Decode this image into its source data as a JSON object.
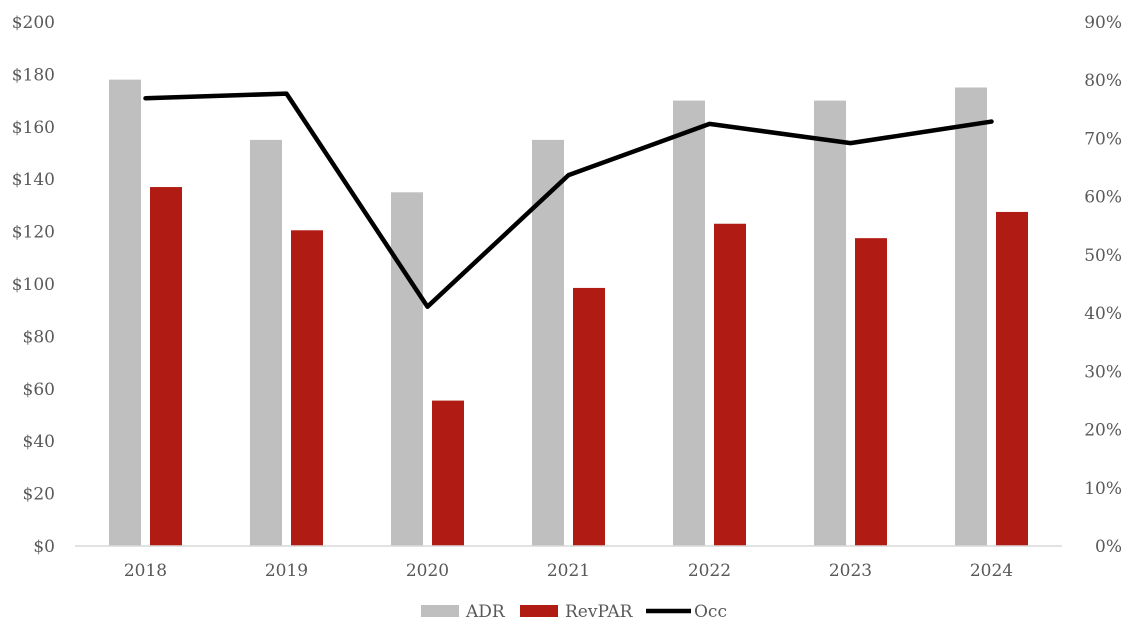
{
  "chart_data": {
    "type": "bar",
    "categories": [
      "2018",
      "2019",
      "2020",
      "2021",
      "2022",
      "2023",
      "2024"
    ],
    "series": [
      {
        "name": "ADR",
        "kind": "bar",
        "axis": "left",
        "color": "#bfbfbf",
        "values": [
          178,
          155,
          135,
          155,
          170,
          170,
          175
        ]
      },
      {
        "name": "RevPAR",
        "kind": "bar",
        "axis": "left",
        "color": "#b01c13",
        "values": [
          137,
          120.5,
          55.5,
          98.5,
          123,
          117.5,
          127.5
        ]
      },
      {
        "name": "Occ",
        "kind": "line",
        "axis": "right",
        "color": "#000000",
        "values": [
          0.769,
          0.777,
          0.411,
          0.637,
          0.725,
          0.692,
          0.729
        ]
      }
    ],
    "y_left": {
      "min": 0,
      "max": 200,
      "ticks": [
        0,
        20,
        40,
        60,
        80,
        100,
        120,
        140,
        160,
        180,
        200
      ],
      "tick_labels": [
        "$0",
        "$20",
        "$40",
        "$60",
        "$80",
        "$100",
        "$120",
        "$140",
        "$160",
        "$180",
        "$200"
      ]
    },
    "y_right": {
      "min": 0,
      "max": 0.9,
      "ticks": [
        0,
        0.1,
        0.2,
        0.3,
        0.4,
        0.5,
        0.6,
        0.7,
        0.8,
        0.9
      ],
      "tick_labels": [
        "0%",
        "10%",
        "20%",
        "30%",
        "40%",
        "50%",
        "60%",
        "70%",
        "80%",
        "90%"
      ]
    },
    "legend": {
      "position": "bottom",
      "entries": [
        "ADR",
        "RevPAR",
        "Occ"
      ]
    },
    "grid": false,
    "title": "",
    "xlabel": "",
    "ylabel": ""
  }
}
